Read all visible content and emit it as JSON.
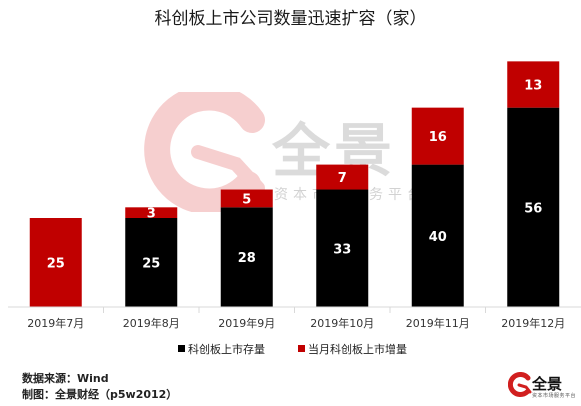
{
  "chart_data": {
    "type": "bar",
    "stacked": true,
    "title": "科创板上市公司数量迅速扩容（家）",
    "categories": [
      "2019年7月",
      "2019年8月",
      "2019年9月",
      "2019年10月",
      "2019年11月",
      "2019年12月"
    ],
    "series": [
      {
        "name": "科创板上市存量",
        "color": "#000000",
        "values": [
          0,
          25,
          28,
          33,
          40,
          56
        ]
      },
      {
        "name": "当月科创板上市增量",
        "color": "#c00000",
        "values": [
          25,
          3,
          5,
          7,
          16,
          13
        ]
      }
    ],
    "ylim": [
      0,
      75
    ],
    "grid": false,
    "legend": "bottom"
  },
  "footer": {
    "source": "数据来源：Wind",
    "maker": "制图：全景财经（p5w2012）"
  },
  "watermark": {
    "brand": "全景",
    "tagline": "资本市场服务平台"
  },
  "corner_brand": {
    "brand": "全景",
    "tagline": "资本市场服务平台"
  }
}
